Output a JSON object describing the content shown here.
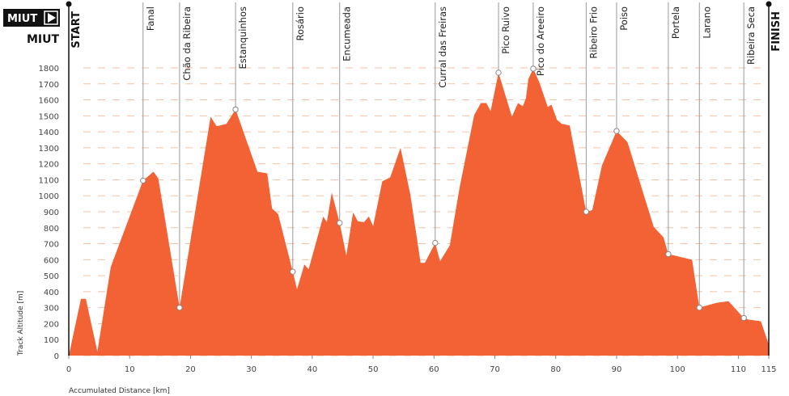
{
  "brand": {
    "badge": "MIUT",
    "name": "MIUT"
  },
  "chart_data": {
    "type": "area",
    "xlabel": "Accumulated Distance [km]",
    "ylabel": "Track Altitude [m]",
    "start_label": "START",
    "finish_label": "FINISH",
    "color": "#f26234",
    "grid": true,
    "xlim": [
      0,
      115
    ],
    "ylim": [
      0,
      1800
    ],
    "xticks": [
      0,
      10,
      20,
      30,
      40,
      50,
      60,
      70,
      80,
      90,
      100,
      110,
      115
    ],
    "yticks": [
      0,
      100,
      200,
      300,
      400,
      500,
      600,
      700,
      800,
      900,
      1000,
      1100,
      1200,
      1300,
      1400,
      1500,
      1600,
      1700,
      1800
    ],
    "x": [
      0,
      2.0,
      2.8,
      4.7,
      6.9,
      12.2,
      13.9,
      14.7,
      18.2,
      23.3,
      24.3,
      25.9,
      27.4,
      31.0,
      32.6,
      33.4,
      34.4,
      36.8,
      37.5,
      38.7,
      39.4,
      41.8,
      42.4,
      43.2,
      44.5,
      45.6,
      46.7,
      47.5,
      48.5,
      49.3,
      50.0,
      51.5,
      52.8,
      54.5,
      56.1,
      57.8,
      58.5,
      60.2,
      61.0,
      62.6,
      64.2,
      66.6,
      67.7,
      68.6,
      69.3,
      70.6,
      72.8,
      73.8,
      74.6,
      75.1,
      75.5,
      76.3,
      77.3,
      78.7,
      79.3,
      80.2,
      81.0,
      82.3,
      85.0,
      86.0,
      87.6,
      90.0,
      91.8,
      93.9,
      96.1,
      97.7,
      98.5,
      102.4,
      103.6,
      106.4,
      108.4,
      110.9,
      111.7,
      113.7,
      115
    ],
    "values": [
      0,
      355,
      355,
      25,
      555,
      1095,
      1150,
      1110,
      300,
      1495,
      1435,
      1450,
      1540,
      1150,
      1140,
      920,
      885,
      525,
      415,
      570,
      540,
      870,
      835,
      1020,
      830,
      625,
      895,
      840,
      835,
      870,
      810,
      1090,
      1115,
      1300,
      1010,
      580,
      580,
      705,
      590,
      690,
      1050,
      1505,
      1580,
      1580,
      1530,
      1770,
      1495,
      1580,
      1560,
      1610,
      1730,
      1795,
      1710,
      1555,
      1570,
      1475,
      1450,
      1440,
      900,
      910,
      1190,
      1405,
      1335,
      1075,
      805,
      740,
      635,
      600,
      300,
      330,
      340,
      235,
      225,
      215,
      70
    ],
    "waypoints": [
      {
        "name": "Fanal",
        "x": 12.2,
        "y": 1095
      },
      {
        "name": "Chão da Ribeira",
        "x": 18.2,
        "y": 300
      },
      {
        "name": "Estanquinhos",
        "x": 27.4,
        "y": 1540
      },
      {
        "name": "Rosário",
        "x": 36.8,
        "y": 525
      },
      {
        "name": "Encumeada",
        "x": 44.5,
        "y": 830
      },
      {
        "name": "Curral das Freiras",
        "x": 60.2,
        "y": 705
      },
      {
        "name": "Pico Ruivo",
        "x": 70.6,
        "y": 1770
      },
      {
        "name": "Pico do Areeiro",
        "x": 76.3,
        "y": 1795
      },
      {
        "name": "Ribeiro Frio",
        "x": 85.0,
        "y": 900
      },
      {
        "name": "Poiso",
        "x": 90.0,
        "y": 1405
      },
      {
        "name": "Portela",
        "x": 98.5,
        "y": 635
      },
      {
        "name": "Larano",
        "x": 103.6,
        "y": 300
      },
      {
        "name": "Ribeira Seca",
        "x": 110.9,
        "y": 235
      }
    ]
  }
}
